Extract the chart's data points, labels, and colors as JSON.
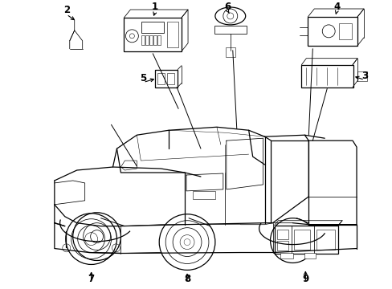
{
  "background_color": "#ffffff",
  "line_color": "#000000",
  "figure_width": 4.89,
  "figure_height": 3.6,
  "dpi": 100,
  "lw_main": 0.9,
  "lw_thin": 0.55,
  "parts_label_fontsize": 8.5
}
